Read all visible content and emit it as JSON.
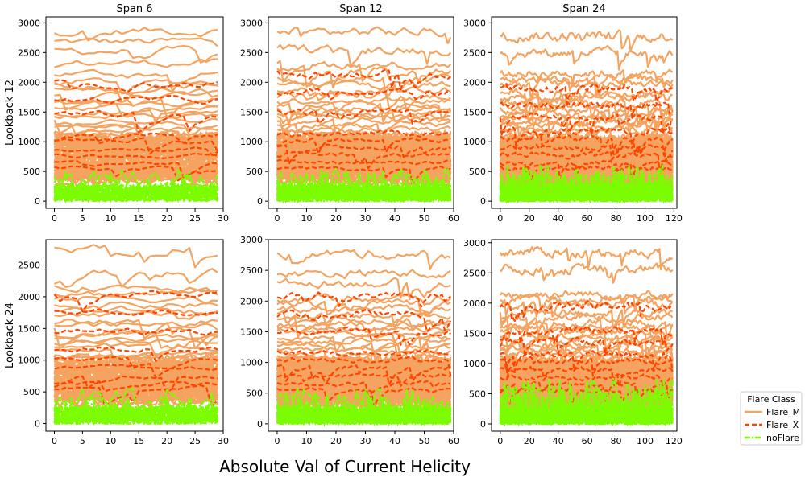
{
  "figure": {
    "supxlabel": "Absolute Val of Current Helicity"
  },
  "legend": {
    "title": "Flare Class",
    "items": [
      {
        "label": "Flare_M",
        "color": "#f4a460",
        "style": "solid"
      },
      {
        "label": "Flare_X",
        "color": "#ff4500",
        "style": "dashed"
      },
      {
        "label": "noFlare",
        "color": "#7cfc00",
        "style": "dashdot"
      }
    ]
  },
  "colors": {
    "Flare_M": "#f4a460",
    "Flare_X": "#ff4500",
    "noFlare": "#7cfc00"
  },
  "chart_data": [
    {
      "type": "line",
      "row": 0,
      "col": 0,
      "title": "Span 6",
      "ylabel": "Lookback 12",
      "xlim": [
        -1.5,
        30
      ],
      "ylim": [
        -120,
        3100
      ],
      "xticks": [
        0,
        5,
        10,
        15,
        20,
        25,
        30
      ],
      "yticks": [
        0,
        500,
        1000,
        1500,
        2000,
        2500,
        3000
      ],
      "npoints": 30,
      "series_levels": {
        "Flare_M": [
          2680,
          2870,
          2330,
          2530,
          2150,
          2010,
          1940,
          1870,
          1790,
          1700,
          1640,
          1580,
          1500,
          1440,
          1380,
          1300,
          1250,
          1180,
          1120,
          1060,
          1000,
          960,
          920,
          880,
          830,
          790,
          740,
          700,
          660,
          620,
          580,
          540,
          500,
          460,
          420,
          380
        ],
        "Flare_X": [
          1980,
          1700,
          1450,
          1130,
          1020,
          880,
          760,
          640,
          560
        ],
        "noFlare": [
          280,
          240,
          200,
          160,
          120,
          80,
          40,
          15
        ]
      }
    },
    {
      "type": "line",
      "row": 0,
      "col": 1,
      "title": "Span 12",
      "ylabel": "",
      "xlim": [
        -3,
        60
      ],
      "ylim": [
        -120,
        3100
      ],
      "xticks": [
        0,
        10,
        20,
        30,
        40,
        50,
        60
      ],
      "yticks": [
        0,
        500,
        1000,
        1500,
        2000,
        2500,
        3000
      ],
      "npoints": 60,
      "series_levels": {
        "Flare_M": [
          2850,
          2560,
          2300,
          2200,
          2050,
          1960,
          1880,
          1780,
          1700,
          1620,
          1560,
          1490,
          1420,
          1350,
          1290,
          1220,
          1160,
          1100,
          1050,
          990,
          940,
          890,
          840,
          790,
          740,
          700,
          660,
          620,
          580,
          540,
          500,
          460,
          420,
          380
        ],
        "Flare_X": [
          2150,
          1830,
          1500,
          1140,
          1050,
          920,
          780,
          660,
          560
        ],
        "noFlare": [
          290,
          250,
          210,
          170,
          130,
          90,
          50,
          15
        ]
      }
    },
    {
      "type": "line",
      "row": 0,
      "col": 2,
      "title": "Span 24",
      "ylabel": "",
      "xlim": [
        -6,
        122
      ],
      "ylim": [
        -120,
        3100
      ],
      "xticks": [
        0,
        20,
        40,
        60,
        80,
        100,
        120
      ],
      "yticks": [
        0,
        500,
        1000,
        1500,
        2000,
        2500,
        3000
      ],
      "npoints": 120,
      "series_levels": {
        "Flare_M": [
          2780,
          2500,
          2150,
          2050,
          1980,
          1830,
          1750,
          1680,
          1600,
          1540,
          1470,
          1400,
          1340,
          1280,
          1220,
          1160,
          1100,
          1050,
          990,
          940,
          890,
          840,
          790,
          740,
          700,
          660,
          620,
          580,
          540,
          500,
          460,
          420,
          380
        ],
        "Flare_X": [
          1900,
          1620,
          1420,
          1180,
          1050,
          900,
          780,
          650,
          560
        ],
        "noFlare": [
          300,
          260,
          220,
          180,
          140,
          100,
          60,
          15
        ]
      }
    },
    {
      "type": "line",
      "row": 1,
      "col": 0,
      "title": "",
      "ylabel": "Lookback 24",
      "xlim": [
        -1.5,
        30
      ],
      "ylim": [
        -120,
        2900
      ],
      "xticks": [
        0,
        5,
        10,
        15,
        20,
        25,
        30
      ],
      "yticks": [
        0,
        500,
        1000,
        1500,
        2000,
        2500
      ],
      "npoints": 30,
      "series_levels": {
        "Flare_M": [
          2760,
          2380,
          2160,
          2050,
          1980,
          1870,
          1780,
          1700,
          1630,
          1560,
          1480,
          1420,
          1350,
          1290,
          1220,
          1160,
          1100,
          1050,
          990,
          940,
          890,
          840,
          790,
          740,
          700,
          660,
          620,
          580,
          540,
          500,
          460,
          420,
          380
        ],
        "Flare_X": [
          2050,
          1760,
          1450,
          1180,
          1020,
          880,
          760,
          640,
          560
        ],
        "noFlare": [
          290,
          250,
          210,
          170,
          130,
          90,
          50,
          15
        ]
      }
    },
    {
      "type": "line",
      "row": 1,
      "col": 1,
      "title": "",
      "ylabel": "",
      "xlim": [
        -3,
        60
      ],
      "ylim": [
        -120,
        3000
      ],
      "xticks": [
        0,
        10,
        20,
        30,
        40,
        50,
        60
      ],
      "yticks": [
        0,
        500,
        1000,
        1500,
        2000,
        2500,
        3000
      ],
      "npoints": 60,
      "series_levels": {
        "Flare_M": [
          2770,
          2450,
          2300,
          2050,
          1960,
          1880,
          1790,
          1700,
          1620,
          1560,
          1490,
          1420,
          1350,
          1290,
          1220,
          1160,
          1100,
          1050,
          990,
          940,
          890,
          840,
          790,
          740,
          700,
          660,
          620,
          580,
          540,
          500,
          460,
          420,
          380
        ],
        "Flare_X": [
          2100,
          1780,
          1500,
          1160,
          1050,
          920,
          780,
          660,
          560
        ],
        "noFlare": [
          290,
          250,
          210,
          170,
          130,
          90,
          50,
          15
        ]
      }
    },
    {
      "type": "line",
      "row": 1,
      "col": 2,
      "title": "",
      "ylabel": "",
      "xlim": [
        -6,
        122
      ],
      "ylim": [
        -120,
        3050
      ],
      "xticks": [
        0,
        20,
        40,
        60,
        80,
        100,
        120
      ],
      "yticks": [
        0,
        500,
        1000,
        1500,
        2000,
        2500,
        3000
      ],
      "npoints": 120,
      "series_levels": {
        "Flare_M": [
          2850,
          2560,
          2150,
          2060,
          1980,
          1840,
          1760,
          1680,
          1600,
          1540,
          1470,
          1400,
          1340,
          1280,
          1220,
          1160,
          1100,
          1050,
          990,
          940,
          890,
          840,
          790,
          740,
          700,
          660,
          620,
          580,
          540,
          500,
          460,
          420,
          380
        ],
        "Flare_X": [
          1950,
          1560,
          1380,
          1150,
          1050,
          900,
          780,
          650,
          560
        ],
        "noFlare": [
          380,
          300,
          260,
          220,
          180,
          140,
          100,
          60,
          15
        ]
      }
    }
  ]
}
